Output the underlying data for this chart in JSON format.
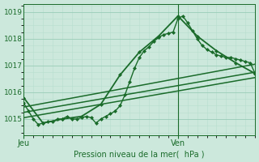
{
  "title": "",
  "xlabel": "Pression niveau de la mer(  hPa )",
  "ylabel": "",
  "ylim": [
    1014.4,
    1019.3
  ],
  "xlim": [
    0,
    48
  ],
  "yticks": [
    1015,
    1016,
    1017,
    1018,
    1019
  ],
  "xtick_positions": [
    0,
    32
  ],
  "xtick_labels": [
    "Jeu",
    "Ven"
  ],
  "bg_color": "#cce8dc",
  "grid_color_major": "#99ccb8",
  "grid_color_minor": "#b8dece",
  "line_color": "#1a6b2a",
  "vline_x": 32,
  "figsize": [
    3.2,
    2.0
  ],
  "dpi": 100,
  "series": [
    {
      "x": [
        0,
        1,
        2,
        3,
        4,
        5,
        6,
        7,
        8,
        9,
        10,
        11,
        12,
        13,
        14,
        15,
        16,
        17,
        18,
        19,
        20,
        21,
        22,
        23,
        24,
        25,
        26,
        27,
        28,
        29,
        30,
        31,
        32,
        33,
        34,
        35,
        36,
        37,
        38,
        39,
        40,
        41,
        42,
        43,
        44,
        45,
        46,
        47,
        48
      ],
      "y": [
        1015.6,
        1015.3,
        1015.0,
        1014.8,
        1014.85,
        1014.9,
        1014.9,
        1015.0,
        1015.0,
        1015.1,
        1015.0,
        1015.0,
        1015.05,
        1015.1,
        1015.05,
        1014.85,
        1015.0,
        1015.1,
        1015.2,
        1015.3,
        1015.5,
        1015.9,
        1016.4,
        1016.9,
        1017.3,
        1017.55,
        1017.7,
        1017.9,
        1018.05,
        1018.15,
        1018.2,
        1018.25,
        1018.75,
        1018.85,
        1018.6,
        1018.3,
        1018.0,
        1017.75,
        1017.6,
        1017.5,
        1017.4,
        1017.35,
        1017.3,
        1017.3,
        1017.25,
        1017.2,
        1017.15,
        1017.1,
        1016.7
      ],
      "marker": true,
      "linewidth": 1.0
    },
    {
      "x": [
        0,
        4,
        8,
        12,
        16,
        20,
        24,
        28,
        32,
        36,
        40,
        44,
        48
      ],
      "y": [
        1015.8,
        1014.85,
        1015.0,
        1015.1,
        1015.55,
        1016.65,
        1017.5,
        1018.1,
        1018.85,
        1018.1,
        1017.55,
        1017.1,
        1016.7
      ],
      "marker": true,
      "linewidth": 1.3
    },
    {
      "x": [
        0,
        48
      ],
      "y": [
        1015.45,
        1017.05
      ],
      "marker": false,
      "linewidth": 1.1
    },
    {
      "x": [
        0,
        48
      ],
      "y": [
        1015.25,
        1016.75
      ],
      "marker": false,
      "linewidth": 1.1
    },
    {
      "x": [
        0,
        48
      ],
      "y": [
        1015.05,
        1016.55
      ],
      "marker": false,
      "linewidth": 1.1
    }
  ]
}
